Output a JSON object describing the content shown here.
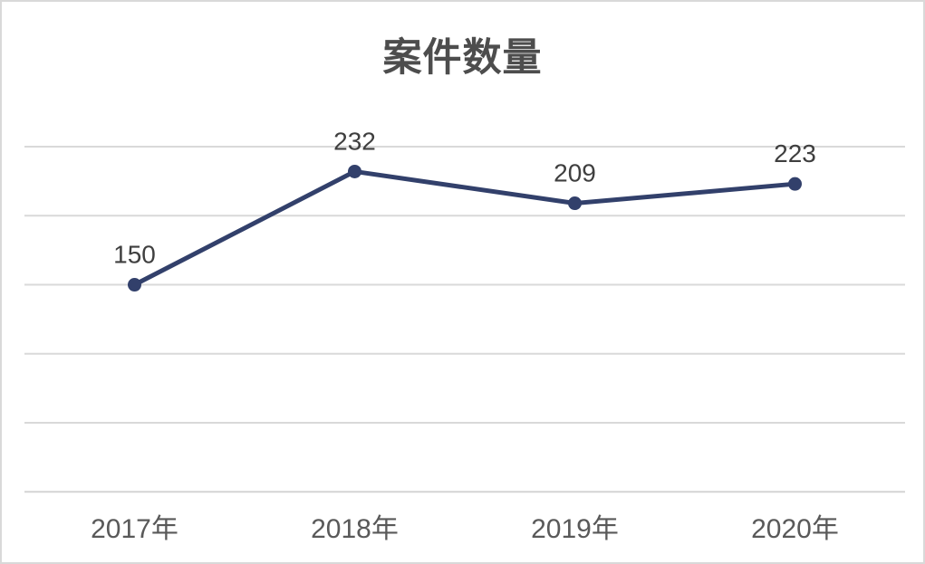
{
  "chart_data": {
    "type": "line",
    "title": "案件数量",
    "categories": [
      "2017年",
      "2018年",
      "2019年",
      "2020年"
    ],
    "series": [
      {
        "name": "案件数量",
        "values": [
          150,
          232,
          209,
          223
        ]
      }
    ],
    "data_labels": [
      "150",
      "232",
      "209",
      "223"
    ],
    "xlabel": "",
    "ylabel": "",
    "ylim": [
      0,
      250
    ],
    "grid_step": 50,
    "grid": "horizontal",
    "legend": "none",
    "y_tick_labels_visible": false,
    "colors": {
      "line": "#32406b",
      "marker": "#32406b",
      "grid_line": "#d9d9d9",
      "axis_line": "#d4d4d4",
      "title_text": "#4d4d4d",
      "data_label_text": "#3f3f3f",
      "axis_label_text": "#595959",
      "chart_border": "#d9d9d9",
      "background": "#ffffff"
    }
  }
}
